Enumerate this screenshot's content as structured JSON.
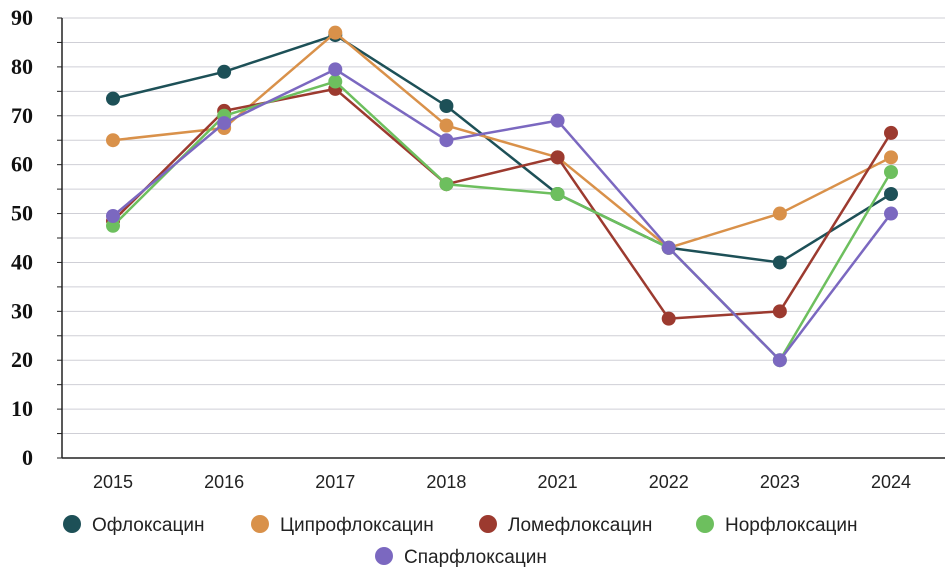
{
  "chart_data": {
    "type": "line",
    "categories": [
      "2015",
      "2016",
      "2017",
      "2018",
      "2021",
      "2022",
      "2023",
      "2024"
    ],
    "ylim": [
      0,
      90
    ],
    "yticks": [
      0,
      10,
      20,
      30,
      40,
      50,
      60,
      70,
      80,
      90
    ],
    "grid": true,
    "legend_position": "bottom",
    "series": [
      {
        "name": "Офлоксацин",
        "color": "#1d5057",
        "values": [
          73.5,
          79,
          86.5,
          72,
          54,
          43,
          40,
          54
        ]
      },
      {
        "name": "Ципрофлоксацин",
        "color": "#d9914a",
        "values": [
          65,
          67.5,
          87,
          68,
          61.5,
          43,
          50,
          61.5
        ]
      },
      {
        "name": "Ломефлоксацин",
        "color": "#9c3a2f",
        "values": [
          48.5,
          71,
          75.5,
          56,
          61.5,
          28.5,
          30,
          66.5
        ]
      },
      {
        "name": "Норфлоксацин",
        "color": "#6dbf5e",
        "values": [
          47.5,
          70,
          77,
          56,
          54,
          43,
          20,
          58.5
        ]
      },
      {
        "name": "Спарфлоксацин",
        "color": "#7b68c0",
        "values": [
          49.5,
          68.5,
          79.5,
          65,
          69,
          43,
          20,
          50
        ]
      }
    ]
  }
}
